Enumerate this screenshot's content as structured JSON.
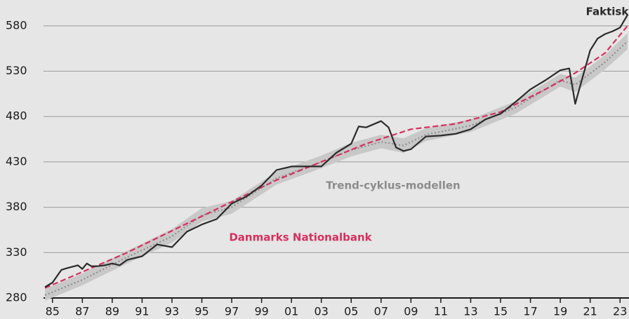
{
  "chart_data": {
    "type": "line",
    "xlim": [
      1984.4,
      2023.6
    ],
    "ylim": [
      280,
      610
    ],
    "yticks": [
      280,
      330,
      380,
      430,
      480,
      530,
      580
    ],
    "xticks": [
      {
        "value": 1985,
        "label": "85"
      },
      {
        "value": 1987,
        "label": "87"
      },
      {
        "value": 1989,
        "label": "89"
      },
      {
        "value": 1991,
        "label": "91"
      },
      {
        "value": 1993,
        "label": "93"
      },
      {
        "value": 1995,
        "label": "95"
      },
      {
        "value": 1997,
        "label": "97"
      },
      {
        "value": 1999,
        "label": "99"
      },
      {
        "value": 2001,
        "label": "01"
      },
      {
        "value": 2003,
        "label": "03"
      },
      {
        "value": 2005,
        "label": "05"
      },
      {
        "value": 2007,
        "label": "07"
      },
      {
        "value": 2009,
        "label": "09"
      },
      {
        "value": 2011,
        "label": "11"
      },
      {
        "value": 2013,
        "label": "13"
      },
      {
        "value": 2015,
        "label": "15"
      },
      {
        "value": 2017,
        "label": "17"
      },
      {
        "value": 2019,
        "label": "19"
      },
      {
        "value": 2021,
        "label": "21"
      },
      {
        "value": 2023,
        "label": "23"
      }
    ],
    "grid": true,
    "series": [
      {
        "name": "Trend-cyklus-modellen",
        "color": "#8c8c8c",
        "style": "dotted",
        "band_color": "#c8c8c8",
        "x": [
          1984.5,
          1987,
          1990,
          1993,
          1995,
          1997,
          2000,
          2003,
          2005,
          2007,
          2008.5,
          2010,
          2013,
          2016,
          2019,
          2020,
          2022,
          2023.5
        ],
        "values": [
          283,
          300,
          325,
          348,
          371,
          380,
          412,
          430,
          443,
          452,
          448,
          460,
          470,
          490,
          520,
          515,
          540,
          563
        ],
        "upper": [
          290,
          307,
          332,
          356,
          379,
          387,
          419,
          437,
          451,
          460,
          456,
          467,
          477,
          497,
          527,
          523,
          548,
          572
        ],
        "lower": [
          277,
          294,
          318,
          341,
          364,
          373,
          405,
          423,
          436,
          445,
          440,
          453,
          463,
          483,
          513,
          507,
          532,
          554
        ]
      },
      {
        "name": "Danmarks Nationalbank",
        "color": "#d6305f",
        "style": "dashed",
        "x": [
          1984.5,
          1990,
          1995,
          2000,
          2003,
          2006,
          2009,
          2012,
          2015,
          2018,
          2020,
          2022,
          2023.5
        ],
        "values": [
          291,
          330,
          370,
          410,
          430,
          450,
          466,
          472,
          485,
          510,
          528,
          550,
          580
        ]
      },
      {
        "name": "Faktisk",
        "color": "#2a2a2a",
        "style": "solid",
        "x": [
          1984.5,
          1985,
          1985.6,
          1986,
          1986.7,
          1987,
          1987.3,
          1987.6,
          1988,
          1988.5,
          1989,
          1989.5,
          1990,
          1991,
          1992,
          1993,
          1994,
          1995,
          1996,
          1997,
          1998,
          1999,
          2000,
          2001,
          2002,
          2003,
          2004,
          2005,
          2005.5,
          2006,
          2007,
          2007.5,
          2008,
          2008.5,
          2009,
          2010,
          2011,
          2012,
          2013,
          2014,
          2015,
          2016,
          2017,
          2018,
          2019,
          2019.6,
          2020,
          2020.3,
          2021,
          2021.5,
          2022,
          2022.5,
          2023,
          2023.5
        ],
        "values": [
          292,
          297,
          311,
          313,
          316,
          312,
          318,
          315,
          315,
          316,
          318,
          316,
          322,
          326,
          339,
          336,
          353,
          361,
          367,
          384,
          392,
          404,
          421,
          425,
          425,
          425,
          440,
          450,
          469,
          468,
          475,
          468,
          446,
          442,
          444,
          458,
          459,
          461,
          466,
          477,
          483,
          496,
          510,
          520,
          531,
          533,
          494,
          512,
          553,
          566,
          571,
          574,
          578,
          592
        ]
      }
    ]
  }
}
